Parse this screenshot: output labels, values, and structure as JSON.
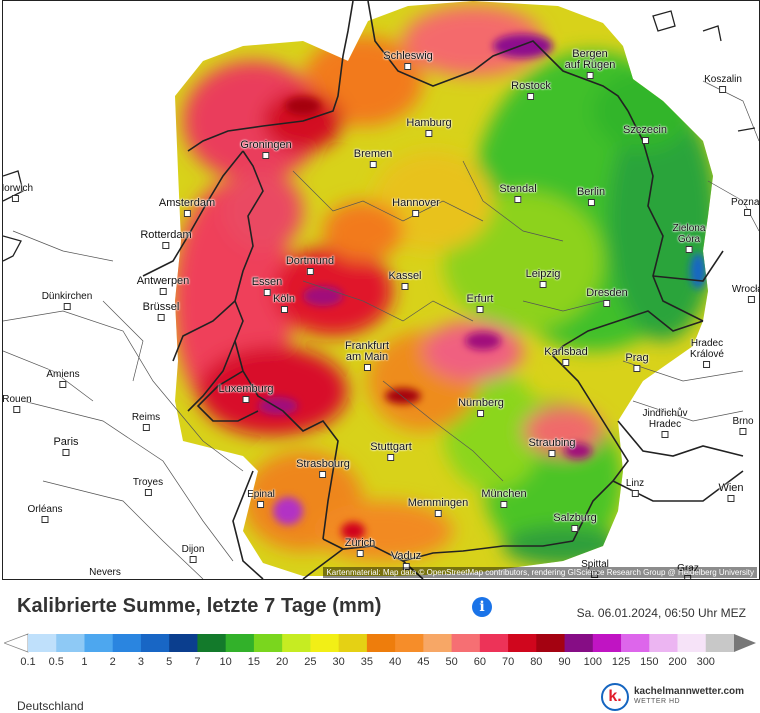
{
  "title": "Kalibrierte Summe, letzte 7 Tage (mm)",
  "timestamp": "Sa. 06.01.2024, 06:50 Uhr MEZ",
  "region": "Deutschland",
  "attribution": "Kartenmaterial: Map data © OpenStreetMap contributors, rendering GIScience Research Group @ Heidelberg University",
  "brand": {
    "name": "kachelmannwetter.com",
    "sub": "WETTER HD",
    "icon_letter": "k."
  },
  "info_icon": "info-icon",
  "legend": {
    "labels": [
      "0.1",
      "0.5",
      "1",
      "2",
      "3",
      "5",
      "7",
      "10",
      "15",
      "20",
      "25",
      "30",
      "35",
      "40",
      "45",
      "50",
      "60",
      "70",
      "80",
      "90",
      "100",
      "125",
      "150",
      "200",
      "300"
    ],
    "colors": [
      "#bfe0fb",
      "#8ec9f5",
      "#4da7ef",
      "#2a85e0",
      "#1866c5",
      "#0b3e8e",
      "#137a2b",
      "#32b12a",
      "#7ad61e",
      "#c6ec22",
      "#f2ef16",
      "#e5d114",
      "#ee7d0c",
      "#f68d29",
      "#f7a766",
      "#f66f73",
      "#ed3358",
      "#d0061d",
      "#a40211",
      "#860d85",
      "#c014c3",
      "#dd66eb",
      "#ecb5f2",
      "#f6e3f8",
      "#c8c8c8"
    ]
  },
  "cities": [
    {
      "name": "Schleswig"
    },
    {
      "name": "Bergen\nauf Rügen"
    },
    {
      "name": "Rostock"
    },
    {
      "name": "Koszalin"
    },
    {
      "name": "Hamburg"
    },
    {
      "name": "Groningen"
    },
    {
      "name": "Bremen"
    },
    {
      "name": "Szczecin"
    },
    {
      "name": "Norwich"
    },
    {
      "name": "Amsterdam"
    },
    {
      "name": "Stendal"
    },
    {
      "name": "Berlin"
    },
    {
      "name": "Hannover"
    },
    {
      "name": "Rotterdam"
    },
    {
      "name": "Zielona\nGóra"
    },
    {
      "name": "Dortmund"
    },
    {
      "name": "Kassel"
    },
    {
      "name": "Leipzig"
    },
    {
      "name": "Antwerpen"
    },
    {
      "name": "Essen"
    },
    {
      "name": "Dünkirchen"
    },
    {
      "name": "Brüssel"
    },
    {
      "name": "Köln"
    },
    {
      "name": "Erfurt"
    },
    {
      "name": "Dresden"
    },
    {
      "name": "Frankfurt\nam Main"
    },
    {
      "name": "Hradec\nKrálové"
    },
    {
      "name": "Karlsbad"
    },
    {
      "name": "Prag"
    },
    {
      "name": "Amiens"
    },
    {
      "name": "Luxemburg"
    },
    {
      "name": "Rouen"
    },
    {
      "name": "Nürnberg"
    },
    {
      "name": "Reims"
    },
    {
      "name": "Jindřichův\nHradec"
    },
    {
      "name": "Brno"
    },
    {
      "name": "Paris"
    },
    {
      "name": "Straubing"
    },
    {
      "name": "Stuttgart"
    },
    {
      "name": "Strasbourg"
    },
    {
      "name": "Troyes"
    },
    {
      "name": "Linz"
    },
    {
      "name": "Wien"
    },
    {
      "name": "Epinal"
    },
    {
      "name": "München"
    },
    {
      "name": "Memmingen"
    },
    {
      "name": "Orléans"
    },
    {
      "name": "Salzburg"
    },
    {
      "name": "Dijon"
    },
    {
      "name": "Zürich"
    },
    {
      "name": "Vaduz"
    },
    {
      "name": "Nevers"
    },
    {
      "name": "Spittal"
    },
    {
      "name": "Graz"
    },
    {
      "name": "Wrocław"
    },
    {
      "name": "Poznań"
    }
  ]
}
